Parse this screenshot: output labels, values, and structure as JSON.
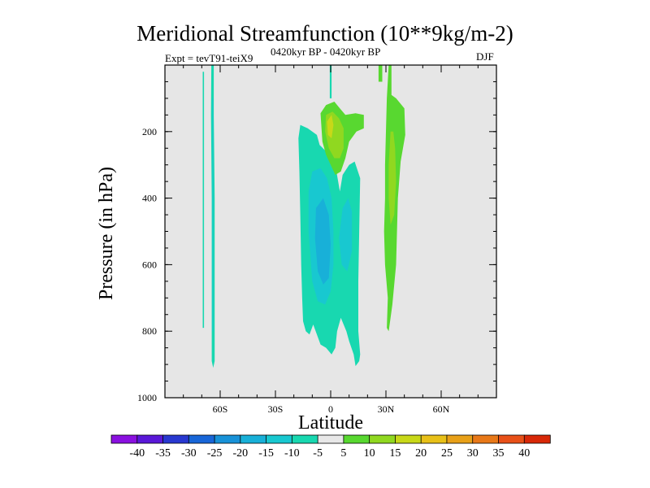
{
  "chart_data": {
    "type": "heatmap",
    "title": "Meridional Streamfunction (10**9kg/m-2)",
    "subtitle_left": "Expt = tevT91-teiX9",
    "subtitle_center": "0420kyr BP - 0420kyr BP",
    "subtitle_right": "DJF",
    "xlabel": "Latitude",
    "ylabel": "Pressure (in hPa)",
    "xlim": [
      -90,
      90
    ],
    "ylim": [
      1000,
      0
    ],
    "x_ticks": [
      {
        "value": -60,
        "label": "60S"
      },
      {
        "value": -30,
        "label": "30S"
      },
      {
        "value": 0,
        "label": "0"
      },
      {
        "value": 30,
        "label": "30N"
      },
      {
        "value": 60,
        "label": "60N"
      }
    ],
    "y_ticks": [
      {
        "value": 200,
        "label": "200"
      },
      {
        "value": 400,
        "label": "400"
      },
      {
        "value": 600,
        "label": "600"
      },
      {
        "value": 800,
        "label": "800"
      },
      {
        "value": 1000,
        "label": "1000"
      }
    ],
    "background_color": "#e6e6e6",
    "colorbar": {
      "levels": [
        -40,
        -35,
        -30,
        -25,
        -20,
        -15,
        -10,
        -5,
        5,
        10,
        15,
        20,
        25,
        30,
        35,
        40
      ],
      "labels": [
        "-40",
        "-35",
        "-30",
        "-25",
        "-20",
        "-15",
        "-10",
        "-5",
        "5",
        "10",
        "15",
        "20",
        "25",
        "30",
        "35",
        "40"
      ],
      "colors": [
        "#8a10e0",
        "#5a18d8",
        "#2838d0",
        "#1866d8",
        "#1892d8",
        "#18b0d8",
        "#18c8d0",
        "#18d8b0",
        "#e8e8e8",
        "#58d830",
        "#90d820",
        "#c8d818",
        "#e8c018",
        "#e8a018",
        "#e87818",
        "#e85018",
        "#d82808"
      ]
    },
    "regions": [
      {
        "name": "sh-thin-strip",
        "level": -5,
        "points": [
          [
            -69.5,
            20
          ],
          [
            -68.8,
            20
          ],
          [
            -68.8,
            790
          ],
          [
            -69.5,
            790
          ]
        ]
      },
      {
        "name": "sh-strip-neg5",
        "level": -5,
        "points": [
          [
            -64.8,
            0
          ],
          [
            -63.5,
            0
          ],
          [
            -63.5,
            150
          ],
          [
            -63.0,
            400
          ],
          [
            -63.0,
            890
          ],
          [
            -63.8,
            910
          ],
          [
            -64.6,
            890
          ],
          [
            -64.6,
            400
          ],
          [
            -65.0,
            150
          ]
        ]
      },
      {
        "name": "sh-strip-neg10",
        "level": -10,
        "points": [
          [
            -64.3,
            100
          ],
          [
            -63.9,
            100
          ],
          [
            -63.7,
            400
          ],
          [
            -63.8,
            800
          ],
          [
            -64.2,
            800
          ],
          [
            -64.2,
            400
          ]
        ]
      },
      {
        "name": "cell-neg5",
        "level": -5,
        "points": [
          [
            -17.5,
            220
          ],
          [
            -16.5,
            180
          ],
          [
            -12.5,
            190
          ],
          [
            -7.5,
            210
          ],
          [
            -6.0,
            240
          ],
          [
            -1.5,
            265
          ],
          [
            2.5,
            300
          ],
          [
            5.0,
            380
          ],
          [
            6.5,
            330
          ],
          [
            10.0,
            300
          ],
          [
            13.0,
            290
          ],
          [
            16.0,
            340
          ],
          [
            15.5,
            500
          ],
          [
            15.0,
            650
          ],
          [
            15.0,
            800
          ],
          [
            16.0,
            870
          ],
          [
            15.5,
            890
          ],
          [
            13.5,
            905
          ],
          [
            12.5,
            870
          ],
          [
            10.0,
            830
          ],
          [
            8.5,
            800
          ],
          [
            5.5,
            760
          ],
          [
            3.5,
            800
          ],
          [
            2.5,
            850
          ],
          [
            0.5,
            870
          ],
          [
            -2.5,
            850
          ],
          [
            -5.5,
            840
          ],
          [
            -7.5,
            810
          ],
          [
            -9.5,
            780
          ],
          [
            -11.5,
            810
          ],
          [
            -13.5,
            800
          ],
          [
            -15.0,
            770
          ],
          [
            -15.5,
            700
          ],
          [
            -16.0,
            600
          ],
          [
            -16.5,
            450
          ],
          [
            -17.0,
            320
          ]
        ]
      },
      {
        "name": "cell-neg10",
        "level": -10,
        "points": [
          [
            -10.0,
            320
          ],
          [
            -5.5,
            310
          ],
          [
            -2.0,
            340
          ],
          [
            0.5,
            400
          ],
          [
            1.5,
            500
          ],
          [
            1.5,
            600
          ],
          [
            0.0,
            680
          ],
          [
            -3.0,
            720
          ],
          [
            -7.0,
            710
          ],
          [
            -10.0,
            650
          ],
          [
            -12.0,
            500
          ],
          [
            -12.0,
            380
          ]
        ]
      },
      {
        "name": "cell-neg10-north",
        "level": -10,
        "points": [
          [
            6.5,
            430
          ],
          [
            9.5,
            400
          ],
          [
            11.5,
            440
          ],
          [
            11.5,
            560
          ],
          [
            9.0,
            620
          ],
          [
            6.0,
            600
          ],
          [
            4.5,
            520
          ]
        ]
      },
      {
        "name": "cell-neg15",
        "level": -15,
        "points": [
          [
            -8.0,
            430
          ],
          [
            -4.0,
            400
          ],
          [
            -1.0,
            450
          ],
          [
            0.0,
            540
          ],
          [
            -1.0,
            640
          ],
          [
            -4.0,
            660
          ],
          [
            -7.0,
            620
          ],
          [
            -8.5,
            520
          ]
        ]
      },
      {
        "name": "cell-upper-pos5",
        "level": 5,
        "points": [
          [
            -5.5,
            145
          ],
          [
            -2.5,
            120
          ],
          [
            2.0,
            110
          ],
          [
            5.0,
            130
          ],
          [
            8.0,
            150
          ],
          [
            13.5,
            145
          ],
          [
            18.0,
            150
          ],
          [
            18.0,
            190
          ],
          [
            14.0,
            200
          ],
          [
            10.0,
            230
          ],
          [
            8.0,
            280
          ],
          [
            5.5,
            320
          ],
          [
            2.5,
            330
          ],
          [
            0.0,
            300
          ],
          [
            -2.5,
            270
          ],
          [
            -4.5,
            230
          ],
          [
            -5.0,
            190
          ]
        ]
      },
      {
        "name": "cell-upper-pos10",
        "level": 10,
        "points": [
          [
            -2.5,
            150
          ],
          [
            1.0,
            140
          ],
          [
            4.5,
            160
          ],
          [
            7.0,
            190
          ],
          [
            7.0,
            250
          ],
          [
            5.0,
            280
          ],
          [
            2.0,
            280
          ],
          [
            -1.0,
            250
          ],
          [
            -3.0,
            200
          ]
        ]
      },
      {
        "name": "cell-upper-pos15",
        "level": 15,
        "points": [
          [
            -2.0,
            170
          ],
          [
            0.5,
            150
          ],
          [
            1.5,
            180
          ],
          [
            0.5,
            220
          ],
          [
            -1.5,
            210
          ]
        ]
      },
      {
        "name": "upper-cap-neg5",
        "level": -5,
        "points": [
          [
            -0.5,
            0
          ],
          [
            0.5,
            0
          ],
          [
            0.5,
            100
          ],
          [
            -0.5,
            100
          ]
        ]
      },
      {
        "name": "nh-tiny-pos5",
        "level": 5,
        "points": [
          [
            26.0,
            0
          ],
          [
            28.0,
            0
          ],
          [
            28.0,
            50
          ],
          [
            26.0,
            50
          ]
        ]
      },
      {
        "name": "nh-cell-pos5",
        "level": 5,
        "points": [
          [
            31.5,
            0
          ],
          [
            33.0,
            0
          ],
          [
            33.0,
            90
          ],
          [
            35.5,
            100
          ],
          [
            40.0,
            130
          ],
          [
            40.5,
            210
          ],
          [
            38.0,
            290
          ],
          [
            36.5,
            400
          ],
          [
            35.5,
            600
          ],
          [
            33.5,
            720
          ],
          [
            32.5,
            760
          ],
          [
            31.5,
            800
          ],
          [
            30.5,
            790
          ],
          [
            31.0,
            700
          ],
          [
            29.5,
            600
          ],
          [
            29.0,
            500
          ],
          [
            29.5,
            400
          ],
          [
            29.5,
            300
          ],
          [
            30.0,
            200
          ],
          [
            30.5,
            100
          ]
        ]
      },
      {
        "name": "nh-cell-pos10",
        "level": 10,
        "points": [
          [
            32.5,
            200
          ],
          [
            34.0,
            200
          ],
          [
            35.0,
            250
          ],
          [
            35.5,
            350
          ],
          [
            34.5,
            450
          ],
          [
            32.5,
            480
          ],
          [
            31.5,
            400
          ],
          [
            31.5,
            300
          ]
        ]
      }
    ]
  }
}
